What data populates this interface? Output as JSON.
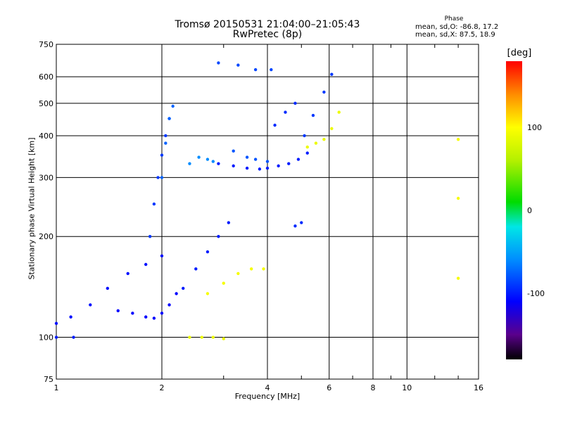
{
  "header": {
    "title_line1": "Tromsø 20150531 21:04:00–21:05:43",
    "title_line2": "RwPretec (8p)",
    "phase_title": "Phase",
    "phase_o": "mean, sd,O: -86.8, 17.2",
    "phase_x": "mean, sd,X: 87.5, 18.9"
  },
  "colorbar": {
    "title": "[deg]",
    "labels": [
      "100",
      "0",
      "-100"
    ],
    "values": [
      100,
      0,
      -100
    ],
    "range": [
      -180,
      180
    ]
  },
  "chart_data": {
    "type": "scatter",
    "xlabel": "Frequency [MHz]",
    "ylabel": "Stationary phase Virtual Height [km]",
    "x_scale": "log",
    "y_scale": "log",
    "xlim": [
      1,
      16
    ],
    "ylim": [
      75,
      750
    ],
    "x_ticks": [
      1,
      2,
      4,
      6,
      8,
      10,
      16
    ],
    "x_tick_labels": [
      "1",
      "2",
      "4",
      "6",
      "8",
      "10",
      "16"
    ],
    "y_ticks": [
      75,
      100,
      200,
      300,
      400,
      500,
      600,
      750
    ],
    "y_tick_labels": [
      "75",
      "100",
      "200",
      "300",
      "400",
      "500",
      "600",
      "750"
    ],
    "grid": true,
    "color_by": "phase [deg]",
    "groups": [
      {
        "x": [
          1.0,
          1.12
        ],
        "y": [
          100,
          100
        ],
        "phase": -100
      },
      {
        "x": [
          1.0,
          1.1,
          1.25,
          1.4,
          1.6,
          1.8,
          2.0
        ],
        "y": [
          110,
          115,
          125,
          140,
          155,
          165,
          175
        ],
        "phase": -105
      },
      {
        "x": [
          1.5,
          1.65,
          1.8,
          1.9,
          2.0,
          2.1,
          2.2
        ],
        "y": [
          120,
          118,
          115,
          114,
          118,
          125,
          135
        ],
        "phase": -110
      },
      {
        "x": [
          1.85,
          1.9,
          1.95,
          2.0,
          2.05,
          2.1
        ],
        "y": [
          200,
          250,
          300,
          350,
          400,
          450
        ],
        "phase": -90
      },
      {
        "x": [
          2.0,
          2.05,
          2.1,
          2.15
        ],
        "y": [
          300,
          380,
          450,
          490
        ],
        "phase": -75
      },
      {
        "x": [
          2.3,
          2.5,
          2.7,
          2.9,
          3.1
        ],
        "y": [
          140,
          160,
          180,
          200,
          220
        ],
        "phase": -100
      },
      {
        "x": [
          2.4,
          2.55,
          2.7,
          2.8
        ],
        "y": [
          330,
          345,
          340,
          335
        ],
        "phase": -60
      },
      {
        "x": [
          2.9,
          3.2,
          3.5,
          3.8,
          4.0,
          4.3,
          4.6,
          4.9,
          5.2
        ],
        "y": [
          330,
          325,
          320,
          318,
          320,
          325,
          330,
          340,
          355
        ],
        "phase": -100
      },
      {
        "x": [
          3.2,
          3.5,
          3.7,
          4.0
        ],
        "y": [
          360,
          345,
          340,
          335
        ],
        "phase": -80
      },
      {
        "x": [
          4.2,
          4.5,
          4.8
        ],
        "y": [
          430,
          470,
          500
        ],
        "phase": -95
      },
      {
        "x": [
          5.1,
          5.4,
          5.8,
          6.1
        ],
        "y": [
          400,
          460,
          540,
          610
        ],
        "phase": -90
      },
      {
        "x": [
          5.2,
          5.5,
          5.8,
          6.1,
          6.4
        ],
        "y": [
          370,
          380,
          390,
          420,
          470
        ],
        "phase": 90
      },
      {
        "x": [
          2.7,
          3.0,
          3.3,
          3.6,
          3.9
        ],
        "y": [
          135,
          145,
          155,
          160,
          160
        ],
        "phase": 95
      },
      {
        "x": [
          2.4,
          2.6,
          2.8,
          3.0
        ],
        "y": [
          100,
          100,
          100,
          99
        ],
        "phase": 90
      },
      {
        "x": [
          2.9,
          3.3,
          3.7,
          4.1
        ],
        "y": [
          660,
          650,
          630,
          630
        ],
        "phase": -85
      },
      {
        "x": [
          4.8,
          5.0
        ],
        "y": [
          215,
          220
        ],
        "phase": -95
      },
      {
        "x": [
          14.0,
          14.0,
          14.0
        ],
        "y": [
          390,
          260,
          150
        ],
        "phase": 95
      }
    ]
  }
}
